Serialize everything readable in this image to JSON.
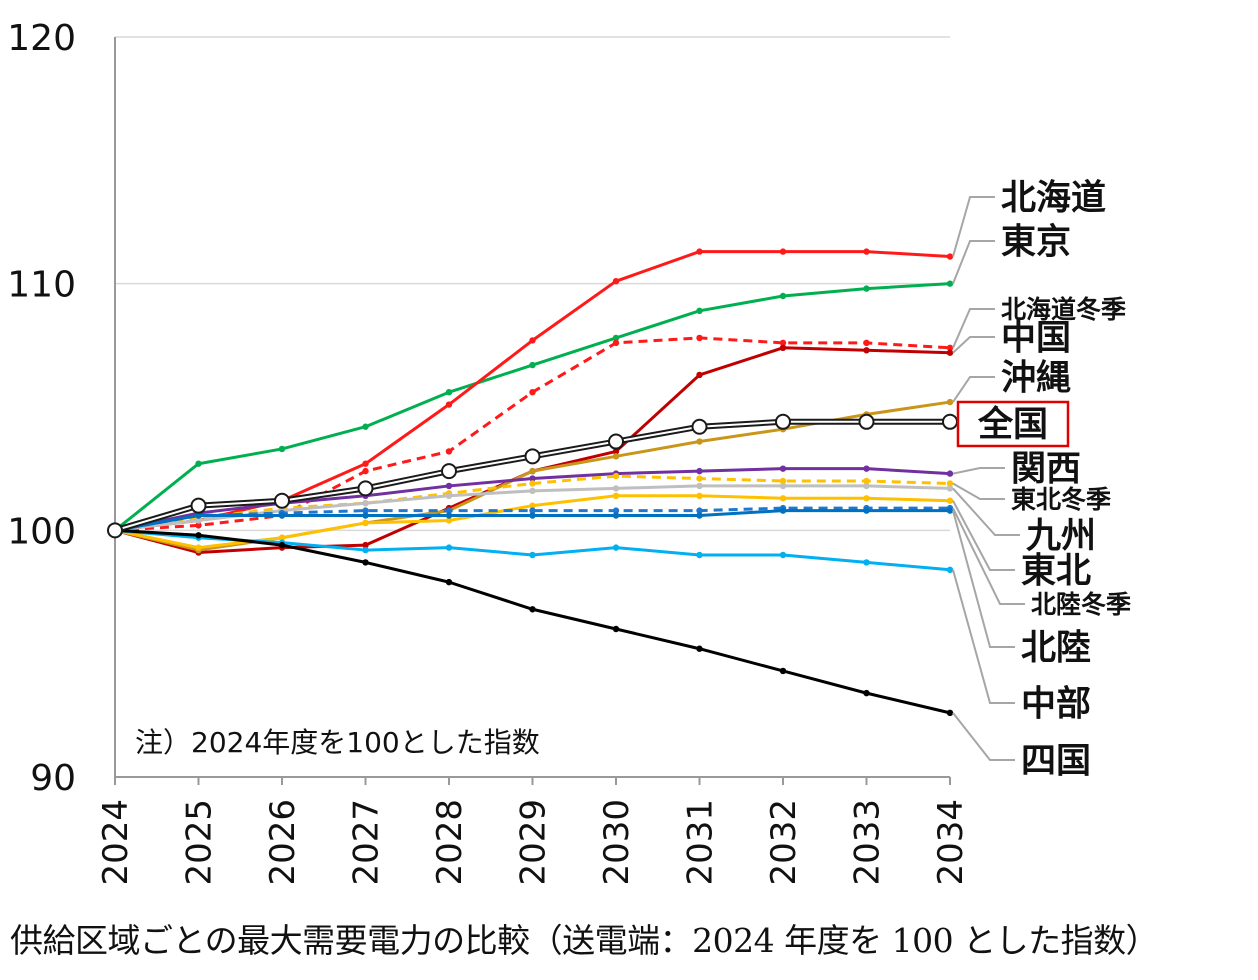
{
  "caption": "供給区域ごとの最大需要電力の比較（送電端：2024 年度を 100 とした指数）",
  "chart_data": {
    "type": "line",
    "title": "",
    "xlabel": "",
    "ylabel": "",
    "ylim": [
      90,
      120
    ],
    "yticks": [
      90,
      100,
      110,
      120
    ],
    "grid": true,
    "note": "注）2024年度を100とした指数",
    "x": [
      "2024",
      "2025",
      "2026",
      "2027",
      "2028",
      "2029",
      "2030",
      "2031",
      "2032",
      "2033",
      "2034"
    ],
    "highlight_label": "全国",
    "series": [
      {
        "name": "東京",
        "color": "#00b050",
        "style": "solid",
        "values": [
          100,
          102.7,
          103.3,
          104.2,
          105.6,
          106.7,
          107.8,
          108.9,
          109.5,
          109.8,
          110.0
        ]
      },
      {
        "name": "北海道",
        "color": "#ff1a1a",
        "style": "solid",
        "values": [
          100,
          100.4,
          101.2,
          102.7,
          105.1,
          107.7,
          110.1,
          111.3,
          111.3,
          111.3,
          111.1
        ]
      },
      {
        "name": "北海道冬季",
        "color": "#ff1a1a",
        "style": "dashed",
        "values": [
          100,
          100.2,
          100.6,
          102.4,
          103.2,
          105.6,
          107.6,
          107.8,
          107.6,
          107.6,
          107.4
        ]
      },
      {
        "name": "中国",
        "color": "#c00000",
        "style": "solid",
        "values": [
          100,
          99.1,
          99.3,
          99.4,
          100.9,
          102.4,
          103.2,
          106.3,
          107.4,
          107.3,
          107.2
        ]
      },
      {
        "name": "沖縄",
        "color": "#c9961a",
        "style": "solid",
        "values": [
          100,
          99.2,
          99.7,
          100.3,
          100.8,
          102.4,
          103.0,
          103.6,
          104.1,
          104.7,
          105.2
        ]
      },
      {
        "name": "全国",
        "color": "#1a1a1a",
        "style": "double",
        "values": [
          100,
          101.0,
          101.2,
          101.7,
          102.4,
          103.0,
          103.6,
          104.2,
          104.4,
          104.4,
          104.4
        ]
      },
      {
        "name": "関西",
        "color": "#7030a0",
        "style": "solid",
        "values": [
          100,
          100.7,
          101.1,
          101.4,
          101.8,
          102.1,
          102.3,
          102.4,
          102.5,
          102.5,
          102.3
        ]
      },
      {
        "name": "東北冬季",
        "color": "#ffc000",
        "style": "dashed",
        "values": [
          100,
          100.5,
          100.9,
          101.1,
          101.5,
          101.9,
          102.2,
          102.1,
          102.0,
          102.0,
          101.9
        ]
      },
      {
        "name": "九州",
        "color": "#bfbfbf",
        "style": "solid",
        "values": [
          100,
          100.4,
          100.8,
          101.1,
          101.4,
          101.6,
          101.7,
          101.8,
          101.8,
          101.8,
          101.7
        ]
      },
      {
        "name": "東北",
        "color": "#ffc000",
        "style": "solid",
        "values": [
          100,
          99.3,
          99.7,
          100.3,
          100.4,
          101.0,
          101.4,
          101.4,
          101.3,
          101.3,
          101.2
        ]
      },
      {
        "name": "北陸冬季",
        "color": "#1f77d0",
        "style": "dashed",
        "values": [
          100,
          100.6,
          100.7,
          100.8,
          100.8,
          100.8,
          100.8,
          100.8,
          100.9,
          100.9,
          100.9
        ]
      },
      {
        "name": "北陸",
        "color": "#0070c0",
        "style": "solid",
        "values": [
          100,
          100.6,
          100.6,
          100.6,
          100.6,
          100.6,
          100.6,
          100.6,
          100.8,
          100.8,
          100.8
        ]
      },
      {
        "name": "中部",
        "color": "#00b0f0",
        "style": "solid",
        "values": [
          100,
          99.7,
          99.5,
          99.2,
          99.3,
          99.0,
          99.3,
          99.0,
          99.0,
          98.7,
          98.4
        ]
      },
      {
        "name": "四国",
        "color": "#000000",
        "style": "solid",
        "values": [
          100,
          99.8,
          99.4,
          98.7,
          97.9,
          96.8,
          96.0,
          95.2,
          94.3,
          93.4,
          92.6
        ]
      }
    ]
  }
}
